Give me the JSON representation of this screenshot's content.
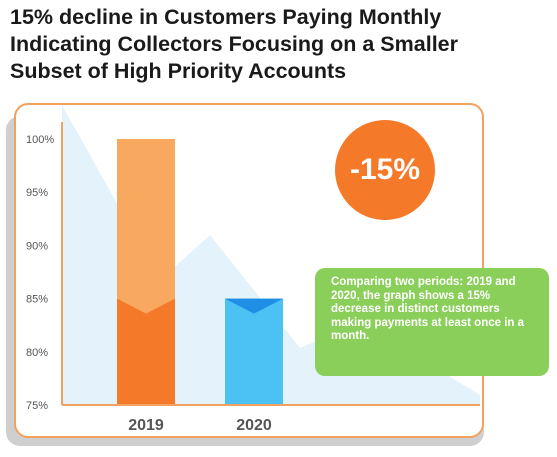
{
  "header": {
    "title": "15% decline in Customers Paying Monthly\nIndicating Collectors Focusing on a Smaller\nSubset of High Priority Accounts"
  },
  "badge": {
    "text": "-15%"
  },
  "note": {
    "text": "Comparing two periods: 2019 and 2020, the graph shows a 15% decrease in distinct customers making payments at least once in a month."
  },
  "colors": {
    "bar_2019_top": "#f9a95f",
    "bar_2019_bottom": "#f47a2a",
    "bar_2020_top": "#1f8fe6",
    "bar_2020_bottom": "#4cc1f4",
    "badge": "#f47a2a",
    "note": "#8bcf5b",
    "card_border": "#f2a25e",
    "background_shape": "#e4f3fb"
  },
  "chart_data": {
    "type": "bar",
    "categories": [
      "2019",
      "2020"
    ],
    "values": [
      100,
      85
    ],
    "ylim": [
      75,
      100
    ],
    "yticks": [
      "75%",
      "80%",
      "85%",
      "90%",
      "95%",
      "100%"
    ],
    "grid": false,
    "legend": "none"
  }
}
